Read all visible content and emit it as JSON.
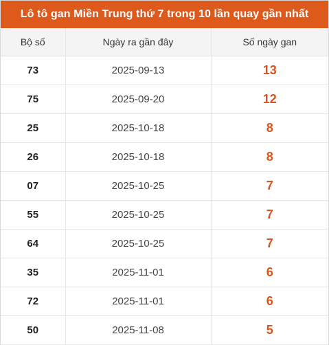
{
  "title": "Lô tô gan Miền Trung thứ 7 trong 10 lần quay gần nhất",
  "headers": {
    "bo_so": "Bộ số",
    "ngay_ra": "Ngày ra gần đây",
    "so_ngay_gan": "Số ngày gan"
  },
  "rows": [
    {
      "bo_so": "73",
      "ngay_ra": "2025-09-13",
      "so_ngay_gan": "13"
    },
    {
      "bo_so": "75",
      "ngay_ra": "2025-09-20",
      "so_ngay_gan": "12"
    },
    {
      "bo_so": "25",
      "ngay_ra": "2025-10-18",
      "so_ngay_gan": "8"
    },
    {
      "bo_so": "26",
      "ngay_ra": "2025-10-18",
      "so_ngay_gan": "8"
    },
    {
      "bo_so": "07",
      "ngay_ra": "2025-10-25",
      "so_ngay_gan": "7"
    },
    {
      "bo_so": "55",
      "ngay_ra": "2025-10-25",
      "so_ngay_gan": "7"
    },
    {
      "bo_so": "64",
      "ngay_ra": "2025-10-25",
      "so_ngay_gan": "7"
    },
    {
      "bo_so": "35",
      "ngay_ra": "2025-11-01",
      "so_ngay_gan": "6"
    },
    {
      "bo_so": "72",
      "ngay_ra": "2025-11-01",
      "so_ngay_gan": "6"
    },
    {
      "bo_so": "50",
      "ngay_ra": "2025-11-08",
      "so_ngay_gan": "5"
    }
  ],
  "colors": {
    "title_background": "#de5a1c",
    "gan_value": "#d9531e"
  }
}
